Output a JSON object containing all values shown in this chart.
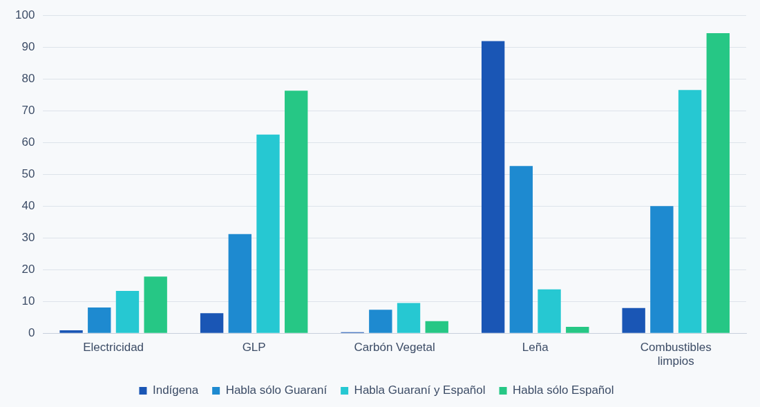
{
  "chart_data": {
    "type": "bar",
    "categories": [
      "Electricidad",
      "GLP",
      "Carbón Vegetal",
      "Leña",
      "Combustibles limpios"
    ],
    "series": [
      {
        "name": "Indígena",
        "color": "#1a56b5",
        "values": [
          0.9,
          6.3,
          0.3,
          91.9,
          7.9
        ]
      },
      {
        "name": "Habla sólo Guaraní",
        "color": "#1e8ad0",
        "values": [
          8.1,
          31.2,
          7.4,
          52.6,
          40.0
        ]
      },
      {
        "name": "Habla Guaraní y Español",
        "color": "#26c8d2",
        "values": [
          13.3,
          62.5,
          9.5,
          13.8,
          76.5
        ]
      },
      {
        "name": "Habla sólo Español",
        "color": "#26c785",
        "values": [
          17.8,
          76.3,
          3.8,
          2.0,
          94.4
        ]
      }
    ],
    "ylim": [
      0,
      100
    ],
    "yticks": [
      0,
      10,
      20,
      30,
      40,
      50,
      60,
      70,
      80,
      90,
      100
    ],
    "grid": "y",
    "legend": "bottom"
  }
}
